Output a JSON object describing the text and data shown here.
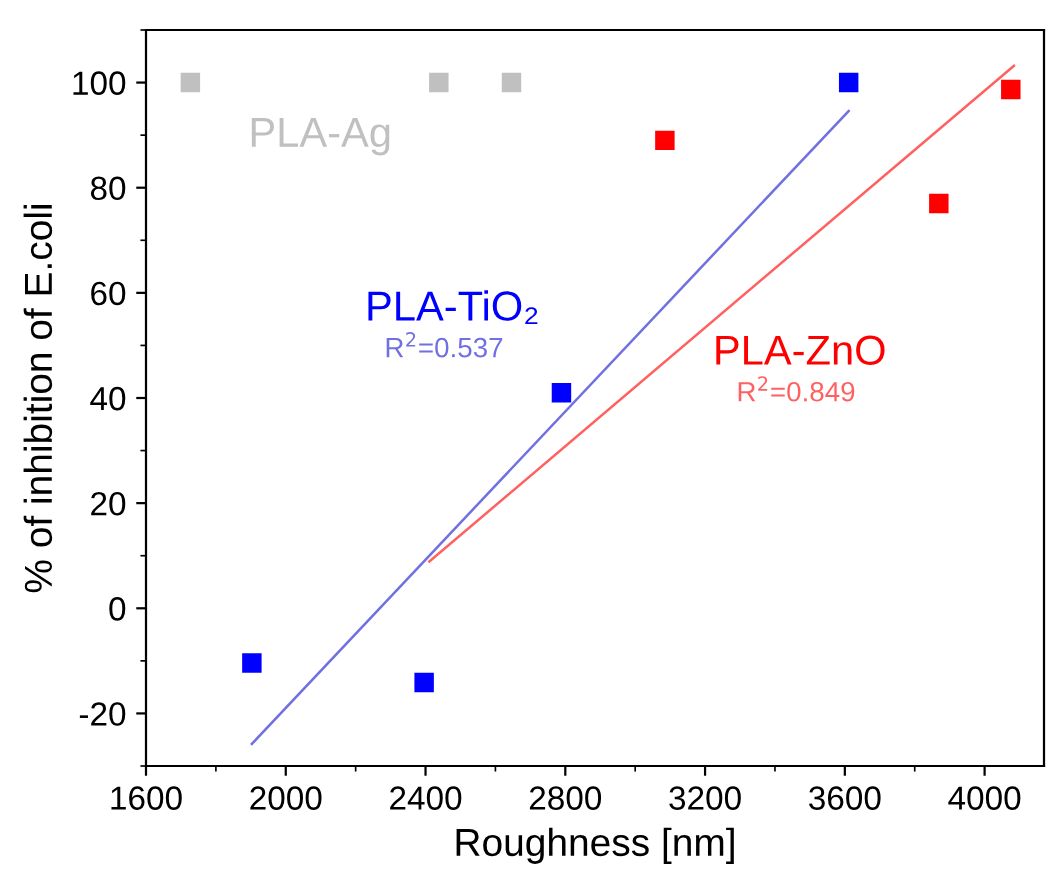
{
  "chart_data": {
    "type": "scatter",
    "xlabel": "Roughness [nm]",
    "ylabel": "% of inhibition of E.coli",
    "xlim": [
      1600,
      4170
    ],
    "xticks": [
      1600,
      2000,
      2400,
      2800,
      3200,
      3600,
      4000
    ],
    "ylim": [
      -30,
      110
    ],
    "yticks": [
      -20,
      0,
      20,
      40,
      60,
      80,
      100
    ],
    "marker": "square",
    "grid": false,
    "legend": false,
    "series": [
      {
        "name": "PLA-Ag",
        "color": "#c0c0c0",
        "x": [
          1727,
          2438,
          2646
        ],
        "values": [
          100,
          100,
          100
        ]
      },
      {
        "name": "PLA-TiO₂",
        "color": "#0000ff",
        "x": [
          1903,
          2396,
          2789,
          3611
        ],
        "values": [
          -10.4,
          -14.1,
          41,
          100
        ]
      },
      {
        "name": "R$^{2}$=0.537",
        "type": "line",
        "marker": "none",
        "color": "#7070e0",
        "x": [
          1903,
          3611
        ],
        "values": [
          -25.8,
          94.6
        ]
      },
      {
        "name": "PLA-ZnO",
        "color": "#ff0000",
        "x": [
          3085,
          3869,
          4075
        ],
        "values": [
          89,
          77,
          98.7
        ]
      },
      {
        "name": "R$^{2}$=0.849",
        "type": "line",
        "marker": "none",
        "color": "#ff6060",
        "x": [
          2411,
          4084
        ],
        "values": [
          8.9,
          103.2
        ]
      }
    ]
  }
}
